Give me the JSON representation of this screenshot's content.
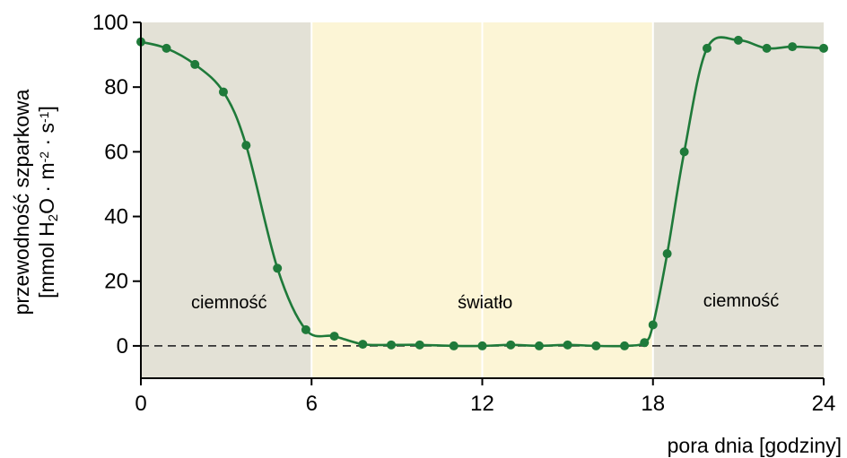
{
  "chart_data": {
    "type": "line",
    "title": "",
    "xlabel": "pora dnia [godziny]",
    "ylabel_line1": "przewodność szparkowa",
    "ylabel_line2_parts": [
      "[mmol H",
      "2",
      "O · m",
      "-2",
      " · s",
      "-1",
      "]"
    ],
    "xlim": [
      0,
      24
    ],
    "ylim": [
      -10,
      100
    ],
    "x_ticks": [
      0,
      6,
      12,
      18,
      24
    ],
    "y_ticks": [
      0,
      20,
      40,
      60,
      80,
      100
    ],
    "grid": false,
    "zero_line": "dashed",
    "regions": [
      {
        "label": "ciemność",
        "x_from": 0,
        "x_to": 6,
        "color": "#e3e1d6"
      },
      {
        "label": "światło",
        "x_from": 6,
        "x_to": 18,
        "color": "#fcf5d6"
      },
      {
        "label": "ciemność",
        "x_from": 18,
        "x_to": 24,
        "color": "#e3e1d6"
      }
    ],
    "series": [
      {
        "color": "#1f7a3a",
        "x": [
          0,
          0.9,
          1.9,
          2.9,
          3.7,
          4.8,
          5.8,
          6.8,
          7.8,
          8.8,
          9.8,
          11,
          12,
          13,
          14,
          15,
          16,
          17,
          17.7,
          18,
          18.5,
          19.1,
          19.9,
          21,
          22,
          22.9,
          24
        ],
        "y": [
          94,
          92,
          87,
          78.5,
          62,
          24,
          5,
          3,
          0.5,
          0.3,
          0.3,
          0,
          0,
          0.3,
          0,
          0.3,
          0,
          0,
          1,
          6.5,
          28.5,
          60,
          92,
          94.5,
          92,
          92.5,
          92
        ]
      }
    ]
  }
}
